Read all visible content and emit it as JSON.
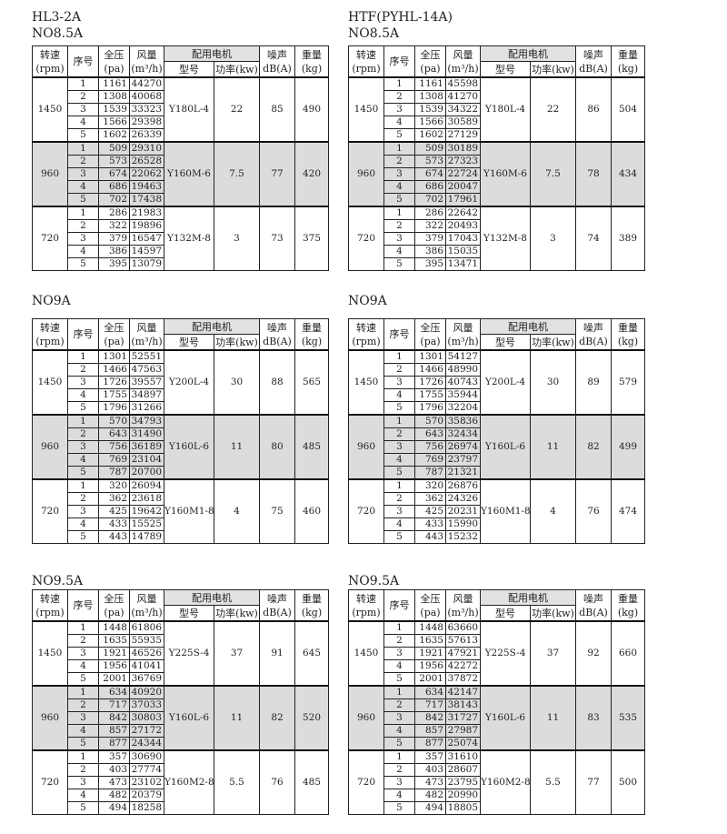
{
  "headers": {
    "rpm": [
      "转速",
      "(rpm)"
    ],
    "seq": "序号",
    "pressure": [
      "全压",
      "(pa)"
    ],
    "flow": [
      "风量",
      "(m³/h)"
    ],
    "motor_group": "配用电机",
    "motor_model": "型号",
    "motor_power": "功率(kw)",
    "noise": [
      "噪声",
      "dB(A)"
    ],
    "weight": [
      "重量",
      "(kg)"
    ]
  },
  "columns": [
    {
      "series": "HL3-2A",
      "tables": [
        {
          "size": "NO8.5A",
          "groups": [
            {
              "rpm": "1450",
              "motor": "Y180L-4",
              "power": "22",
              "noise": "85",
              "weight": "490",
              "rows": [
                [
                  "1",
                  "1161",
                  "44270"
                ],
                [
                  "2",
                  "1308",
                  "40068"
                ],
                [
                  "3",
                  "1539",
                  "33323"
                ],
                [
                  "4",
                  "1566",
                  "29398"
                ],
                [
                  "5",
                  "1602",
                  "26339"
                ]
              ]
            },
            {
              "rpm": "960",
              "motor": "Y160M-6",
              "power": "7.5",
              "noise": "77",
              "weight": "420",
              "rows": [
                [
                  "1",
                  "509",
                  "29310"
                ],
                [
                  "2",
                  "573",
                  "26528"
                ],
                [
                  "3",
                  "674",
                  "22062"
                ],
                [
                  "4",
                  "686",
                  "19463"
                ],
                [
                  "5",
                  "702",
                  "17438"
                ]
              ]
            },
            {
              "rpm": "720",
              "motor": "Y132M-8",
              "power": "3",
              "noise": "73",
              "weight": "375",
              "rows": [
                [
                  "1",
                  "286",
                  "21983"
                ],
                [
                  "2",
                  "322",
                  "19896"
                ],
                [
                  "3",
                  "379",
                  "16547"
                ],
                [
                  "4",
                  "386",
                  "14597"
                ],
                [
                  "5",
                  "395",
                  "13079"
                ]
              ]
            }
          ]
        },
        {
          "size": "NO9A",
          "groups": [
            {
              "rpm": "1450",
              "motor": "Y200L-4",
              "power": "30",
              "noise": "88",
              "weight": "565",
              "rows": [
                [
                  "1",
                  "1301",
                  "52551"
                ],
                [
                  "2",
                  "1466",
                  "47563"
                ],
                [
                  "3",
                  "1726",
                  "39557"
                ],
                [
                  "4",
                  "1755",
                  "34897"
                ],
                [
                  "5",
                  "1796",
                  "31266"
                ]
              ]
            },
            {
              "rpm": "960",
              "motor": "Y160L-6",
              "power": "11",
              "noise": "80",
              "weight": "485",
              "rows": [
                [
                  "1",
                  "570",
                  "34793"
                ],
                [
                  "2",
                  "643",
                  "31490"
                ],
                [
                  "3",
                  "756",
                  "36189"
                ],
                [
                  "4",
                  "769",
                  "23104"
                ],
                [
                  "5",
                  "787",
                  "20700"
                ]
              ]
            },
            {
              "rpm": "720",
              "motor": "Y160M1-8",
              "power": "4",
              "noise": "75",
              "weight": "460",
              "rows": [
                [
                  "1",
                  "320",
                  "26094"
                ],
                [
                  "2",
                  "362",
                  "23618"
                ],
                [
                  "3",
                  "425",
                  "19642"
                ],
                [
                  "4",
                  "433",
                  "15525"
                ],
                [
                  "5",
                  "443",
                  "14789"
                ]
              ]
            }
          ]
        },
        {
          "size": "NO9.5A",
          "groups": [
            {
              "rpm": "1450",
              "motor": "Y225S-4",
              "power": "37",
              "noise": "91",
              "weight": "645",
              "rows": [
                [
                  "1",
                  "1448",
                  "61806"
                ],
                [
                  "2",
                  "1635",
                  "55935"
                ],
                [
                  "3",
                  "1921",
                  "46526"
                ],
                [
                  "4",
                  "1956",
                  "41041"
                ],
                [
                  "5",
                  "2001",
                  "36769"
                ]
              ]
            },
            {
              "rpm": "960",
              "motor": "Y160L-6",
              "power": "11",
              "noise": "82",
              "weight": "520",
              "rows": [
                [
                  "1",
                  "634",
                  "40920"
                ],
                [
                  "2",
                  "717",
                  "37033"
                ],
                [
                  "3",
                  "842",
                  "30803"
                ],
                [
                  "4",
                  "857",
                  "27172"
                ],
                [
                  "5",
                  "877",
                  "24344"
                ]
              ]
            },
            {
              "rpm": "720",
              "motor": "Y160M2-8",
              "power": "5.5",
              "noise": "76",
              "weight": "485",
              "rows": [
                [
                  "1",
                  "357",
                  "30690"
                ],
                [
                  "2",
                  "403",
                  "27774"
                ],
                [
                  "3",
                  "473",
                  "23102"
                ],
                [
                  "4",
                  "482",
                  "20379"
                ],
                [
                  "5",
                  "494",
                  "18258"
                ]
              ]
            }
          ]
        }
      ]
    },
    {
      "series": "HTF(PYHL-14A)",
      "tables": [
        {
          "size": "NO8.5A",
          "groups": [
            {
              "rpm": "1450",
              "motor": "Y180L-4",
              "power": "22",
              "noise": "86",
              "weight": "504",
              "rows": [
                [
                  "1",
                  "1161",
                  "45598"
                ],
                [
                  "2",
                  "1308",
                  "41270"
                ],
                [
                  "3",
                  "1539",
                  "34322"
                ],
                [
                  "4",
                  "1566",
                  "30589"
                ],
                [
                  "5",
                  "1602",
                  "27129"
                ]
              ]
            },
            {
              "rpm": "960",
              "motor": "Y160M-6",
              "power": "7.5",
              "noise": "78",
              "weight": "434",
              "rows": [
                [
                  "1",
                  "509",
                  "30189"
                ],
                [
                  "2",
                  "573",
                  "27323"
                ],
                [
                  "3",
                  "674",
                  "22724"
                ],
                [
                  "4",
                  "686",
                  "20047"
                ],
                [
                  "5",
                  "702",
                  "17961"
                ]
              ]
            },
            {
              "rpm": "720",
              "motor": "Y132M-8",
              "power": "3",
              "noise": "74",
              "weight": "389",
              "rows": [
                [
                  "1",
                  "286",
                  "22642"
                ],
                [
                  "2",
                  "322",
                  "20493"
                ],
                [
                  "3",
                  "379",
                  "17043"
                ],
                [
                  "4",
                  "386",
                  "15035"
                ],
                [
                  "5",
                  "395",
                  "13471"
                ]
              ]
            }
          ]
        },
        {
          "size": "NO9A",
          "groups": [
            {
              "rpm": "1450",
              "motor": "Y200L-4",
              "power": "30",
              "noise": "89",
              "weight": "579",
              "rows": [
                [
                  "1",
                  "1301",
                  "54127"
                ],
                [
                  "2",
                  "1466",
                  "48990"
                ],
                [
                  "3",
                  "1726",
                  "40743"
                ],
                [
                  "4",
                  "1755",
                  "35944"
                ],
                [
                  "5",
                  "1796",
                  "32204"
                ]
              ]
            },
            {
              "rpm": "960",
              "motor": "Y160L-6",
              "power": "11",
              "noise": "82",
              "weight": "499",
              "rows": [
                [
                  "1",
                  "570",
                  "35836"
                ],
                [
                  "2",
                  "643",
                  "32434"
                ],
                [
                  "3",
                  "756",
                  "26974"
                ],
                [
                  "4",
                  "769",
                  "23797"
                ],
                [
                  "5",
                  "787",
                  "21321"
                ]
              ]
            },
            {
              "rpm": "720",
              "motor": "Y160M1-8",
              "power": "4",
              "noise": "76",
              "weight": "474",
              "rows": [
                [
                  "1",
                  "320",
                  "26876"
                ],
                [
                  "2",
                  "362",
                  "24326"
                ],
                [
                  "3",
                  "425",
                  "20231"
                ],
                [
                  "4",
                  "433",
                  "15990"
                ],
                [
                  "5",
                  "443",
                  "15232"
                ]
              ]
            }
          ]
        },
        {
          "size": "NO9.5A",
          "groups": [
            {
              "rpm": "1450",
              "motor": "Y225S-4",
              "power": "37",
              "noise": "92",
              "weight": "660",
              "rows": [
                [
                  "1",
                  "1448",
                  "63660"
                ],
                [
                  "2",
                  "1635",
                  "57613"
                ],
                [
                  "3",
                  "1921",
                  "47921"
                ],
                [
                  "4",
                  "1956",
                  "42272"
                ],
                [
                  "5",
                  "2001",
                  "37872"
                ]
              ]
            },
            {
              "rpm": "960",
              "motor": "Y160L-6",
              "power": "11",
              "noise": "83",
              "weight": "535",
              "rows": [
                [
                  "1",
                  "634",
                  "42147"
                ],
                [
                  "2",
                  "717",
                  "38143"
                ],
                [
                  "3",
                  "842",
                  "31727"
                ],
                [
                  "4",
                  "857",
                  "27987"
                ],
                [
                  "5",
                  "877",
                  "25074"
                ]
              ]
            },
            {
              "rpm": "720",
              "motor": "Y160M2-8",
              "power": "5.5",
              "noise": "77",
              "weight": "500",
              "rows": [
                [
                  "1",
                  "357",
                  "31610"
                ],
                [
                  "2",
                  "403",
                  "28607"
                ],
                [
                  "3",
                  "473",
                  "23795"
                ],
                [
                  "4",
                  "482",
                  "20990"
                ],
                [
                  "5",
                  "494",
                  "18805"
                ]
              ]
            }
          ]
        }
      ]
    }
  ],
  "colors": {
    "shaded_group": "#dcdcdc",
    "border": "#222222"
  }
}
